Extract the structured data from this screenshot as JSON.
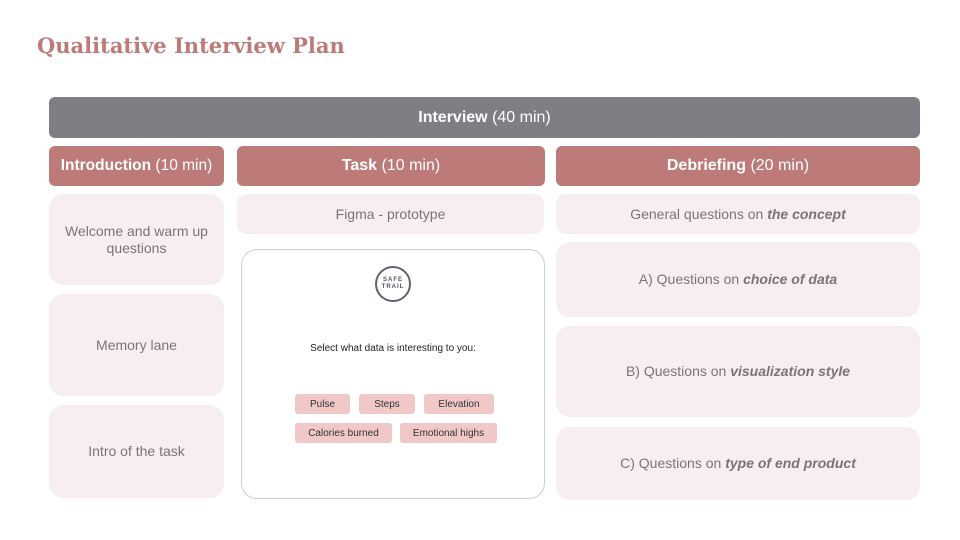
{
  "title": "Qualitative Interview Plan",
  "interview": {
    "label": "Interview",
    "duration": "(40 min)"
  },
  "phases": {
    "introduction": {
      "label": "Introduction",
      "duration": "(10 min)"
    },
    "task": {
      "label": "Task",
      "duration": "(10 min)"
    },
    "debriefing": {
      "label": "Debriefing",
      "duration": "(20 min)"
    }
  },
  "introduction_items": [
    "Welcome and warm up questions",
    "Memory lane",
    "Intro of the task"
  ],
  "task": {
    "tool": "Figma - prototype",
    "prototype": {
      "logo_line1": "SAFE",
      "logo_line2": "TRAIL",
      "prompt": "Select what data is interesting to you:",
      "chips": [
        "Pulse",
        "Steps",
        "Elevation",
        "Calories burned",
        "Emotional highs"
      ]
    }
  },
  "debriefing_items": [
    {
      "prefix": "General questions on ",
      "emphasis": "the concept"
    },
    {
      "prefix": "A) Questions on ",
      "emphasis": "choice of data"
    },
    {
      "prefix": "B) Questions on ",
      "emphasis": "visualization style"
    },
    {
      "prefix": "C) Questions on ",
      "emphasis": "type of end product"
    }
  ],
  "colors": {
    "accent": "#bc7a78",
    "header_gray": "#807d85",
    "card_bg": "#f7efef",
    "chip_bg": "#f0c8c8"
  }
}
